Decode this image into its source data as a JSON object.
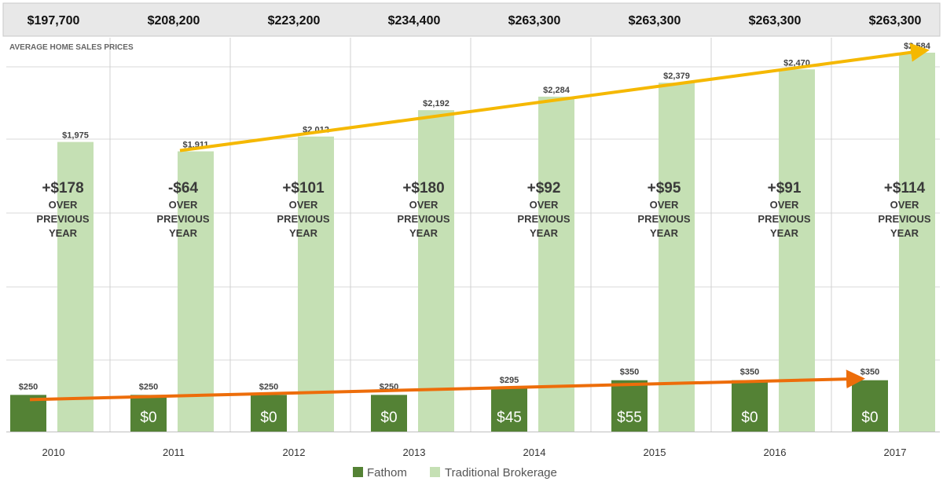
{
  "chart_data": {
    "type": "bar",
    "subtitle": "AVERAGE HOME SALES PRICES",
    "categories": [
      "2010",
      "2011",
      "2012",
      "2013",
      "2014",
      "2015",
      "2016",
      "2017"
    ],
    "home_prices": [
      "$197,700",
      "$208,200",
      "$223,200",
      "$234,400",
      "$263,300",
      "$263,300",
      "$263,300",
      "$263,300"
    ],
    "series": [
      {
        "name": "Fathom",
        "color": "#548235",
        "values": [
          250,
          250,
          250,
          250,
          295,
          350,
          350,
          350
        ],
        "value_labels": [
          "$250",
          "$250",
          "$250",
          "$250",
          "$295",
          "$350",
          "$350",
          "$350"
        ],
        "change_labels": [
          "",
          "$0",
          "$0",
          "$0",
          "$45",
          "$55",
          "$0",
          "$0"
        ]
      },
      {
        "name": "Traditional Brokerage",
        "color": "#c5e0b4",
        "values": [
          1975,
          1911,
          2012,
          2192,
          2284,
          2379,
          2470,
          2584
        ],
        "value_labels": [
          "$1,975",
          "$1,911",
          "$2,012",
          "$2,192",
          "$2,284",
          "$2,379",
          "$2,470",
          "$2,584"
        ],
        "change_main": [
          "+$178",
          "-$64",
          "+$101",
          "+$180",
          "+$92",
          "+$95",
          "+$91",
          "+$114"
        ],
        "change_sub": [
          "OVER",
          "PREVIOUS",
          "YEAR"
        ]
      }
    ],
    "ylim": [
      0,
      2584
    ],
    "legend_position": "bottom",
    "grid": true,
    "trend_arrows": [
      {
        "name": "traditional-trend",
        "color": "#f5b800",
        "from": {
          "category": "2011",
          "value": 1911
        },
        "to": {
          "category": "2017",
          "value": 2584
        }
      },
      {
        "name": "fathom-trend",
        "color": "#ed6d0a",
        "from": {
          "category": "2010",
          "value": 250
        },
        "to": {
          "category": "2017",
          "value": 350
        }
      }
    ]
  }
}
